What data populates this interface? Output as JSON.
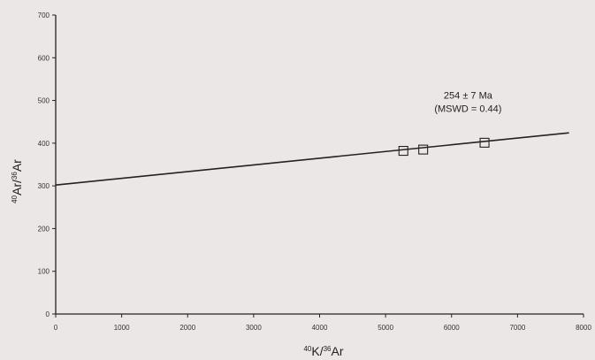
{
  "chart_data": {
    "type": "scatter",
    "xlabel": {
      "sup1": "40",
      "base1": "K/",
      "sup2": "36",
      "base2": "Ar"
    },
    "ylabel": {
      "sup1": "40",
      "base1": "Ar/",
      "sup2": "36",
      "base2": "Ar"
    },
    "xlim": [
      0,
      8000
    ],
    "ylim": [
      0,
      700
    ],
    "x_ticks": [
      "0",
      "1000",
      "2000",
      "3000",
      "4000",
      "5000",
      "6000",
      "7000",
      "8000"
    ],
    "y_ticks": [
      "0",
      "100",
      "200",
      "300",
      "400",
      "500",
      "600",
      "700"
    ],
    "points": [
      {
        "x": 5270,
        "y": 382
      },
      {
        "x": 5570,
        "y": 385
      },
      {
        "x": 6500,
        "y": 401
      }
    ],
    "fit_line": {
      "intercept": 302,
      "slope": 0.0157,
      "x_start": 0,
      "x_end": 7780
    },
    "annotation": {
      "line1": "254 ± 7 Ma",
      "line2": "(MSWD = 0.44)",
      "x": 6250,
      "y": 490
    },
    "grid": false,
    "marker": "open-square"
  },
  "colors": {
    "background": "#ebe7e6",
    "ink": "#222222"
  }
}
